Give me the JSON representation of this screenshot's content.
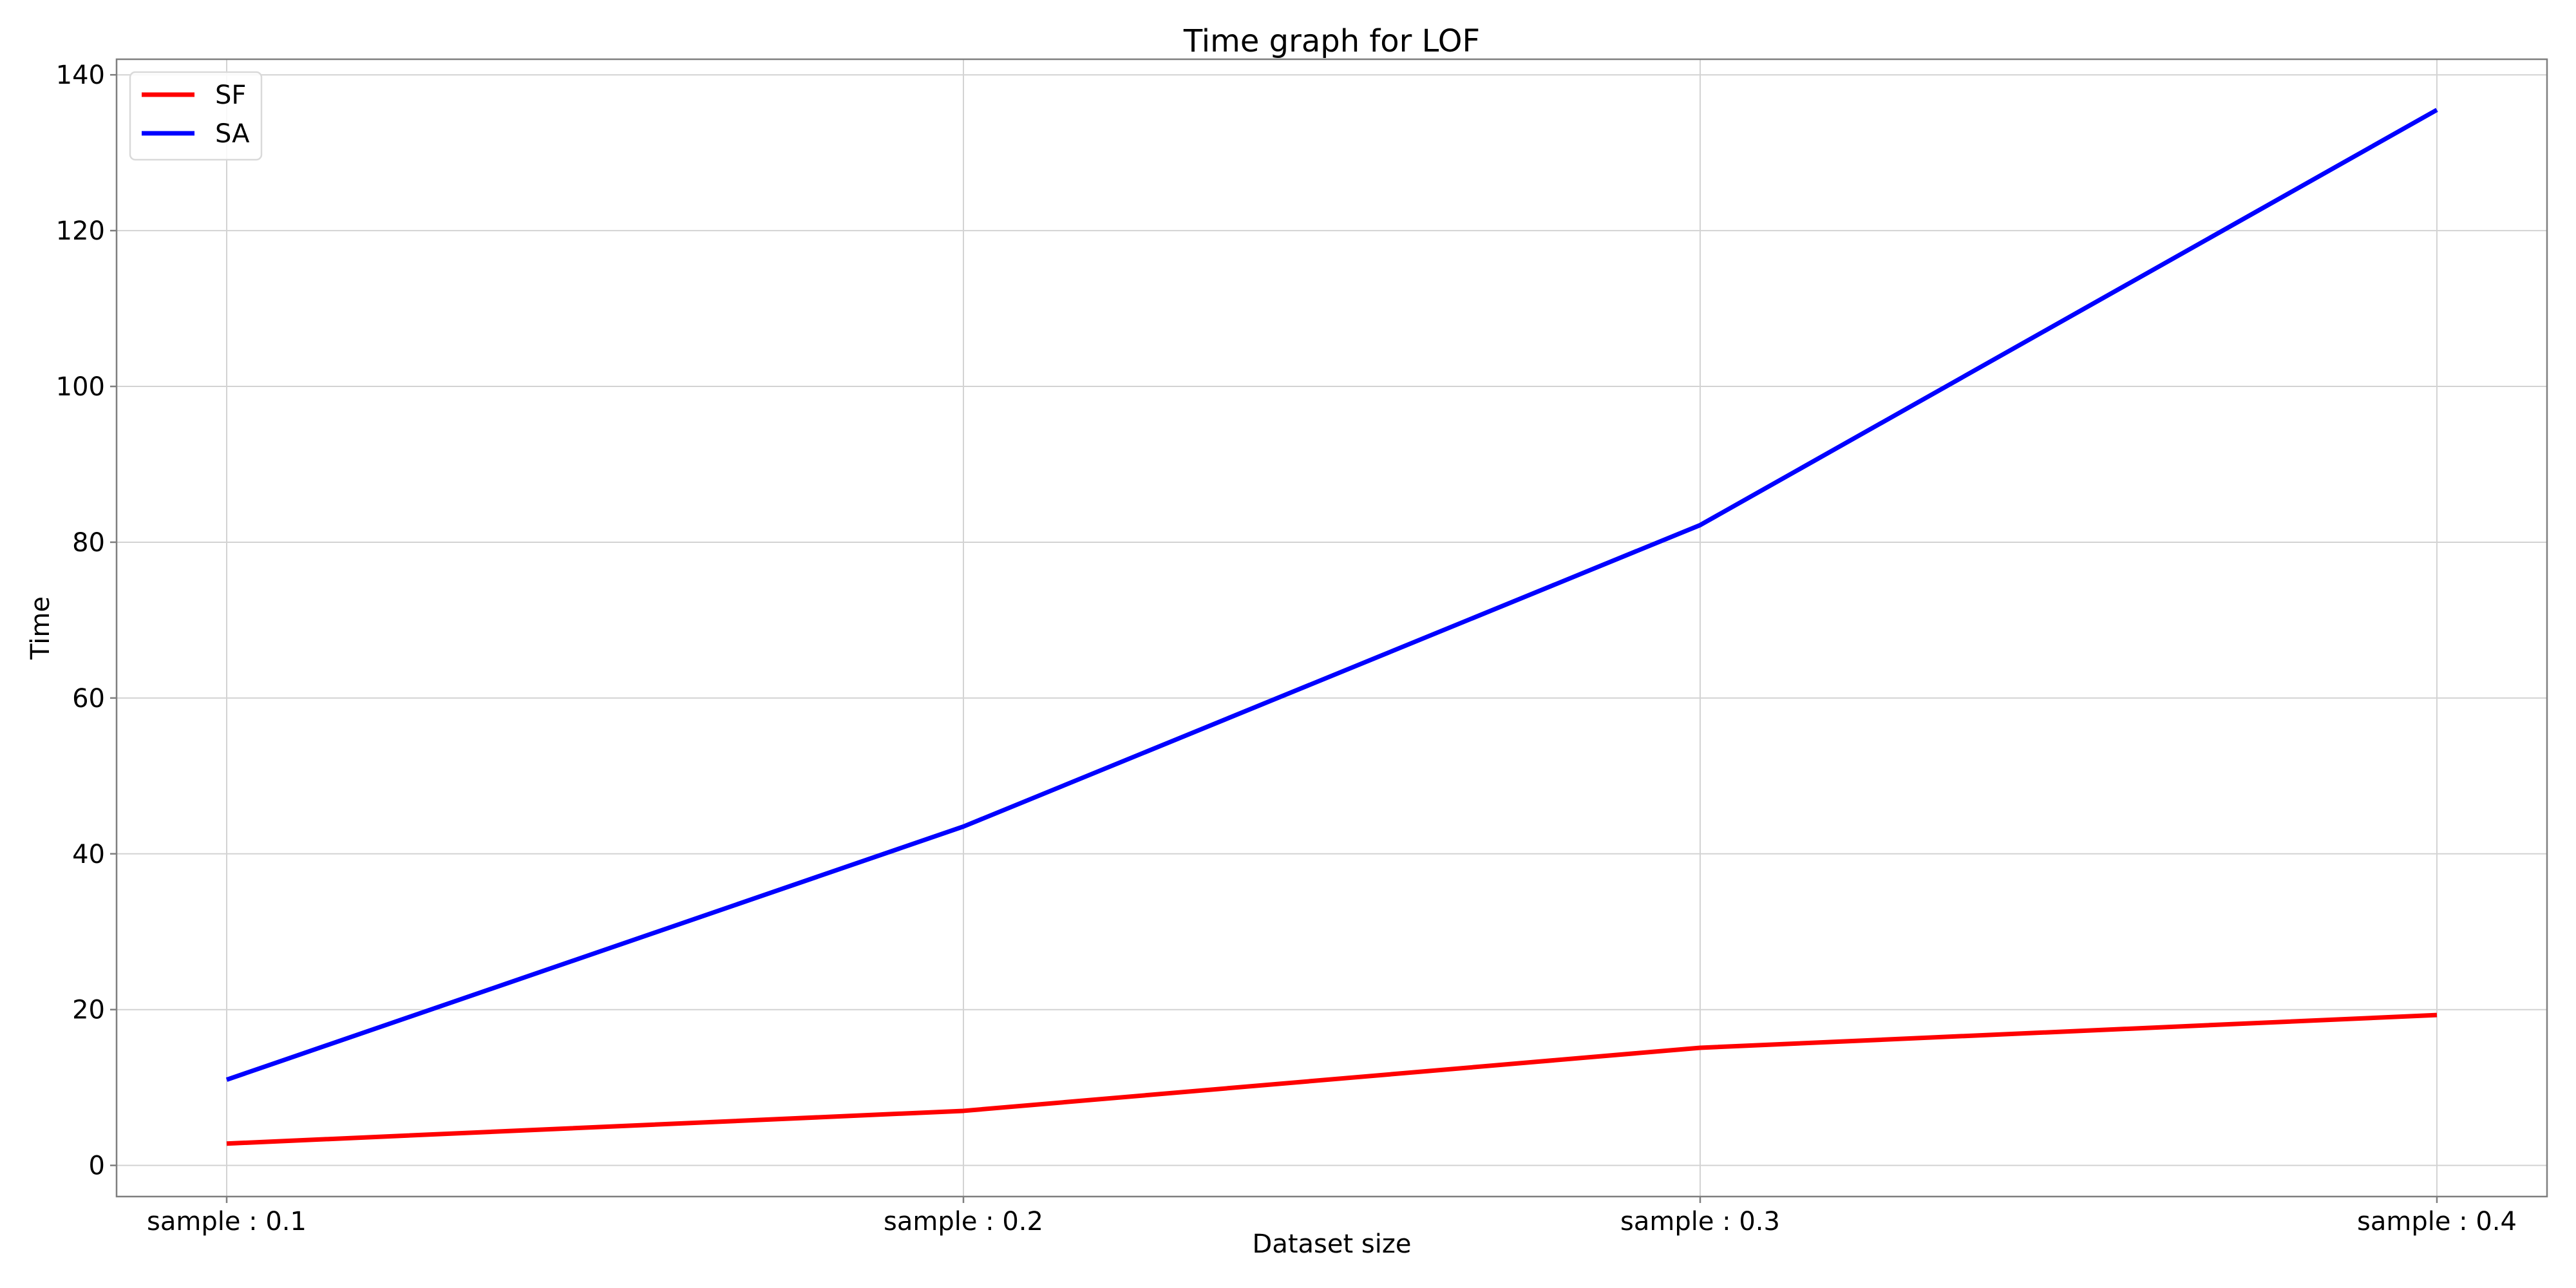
{
  "chart_data": {
    "type": "line",
    "title": "Time graph for LOF",
    "xlabel": "Dataset size",
    "ylabel": "Time",
    "categories": [
      "sample : 0.1",
      "sample : 0.2",
      "sample : 0.3",
      "sample : 0.4"
    ],
    "ylim": [
      -4,
      142
    ],
    "yticks": [
      0,
      20,
      40,
      60,
      80,
      100,
      120,
      140
    ],
    "grid": true,
    "legend_position": "top-left",
    "series": [
      {
        "name": "SF",
        "color": "#ff0000",
        "values": [
          2.8,
          7.0,
          15.1,
          19.3
        ]
      },
      {
        "name": "SA",
        "color": "#0000ff",
        "values": [
          11.0,
          43.5,
          82.2,
          135.5
        ]
      }
    ]
  }
}
